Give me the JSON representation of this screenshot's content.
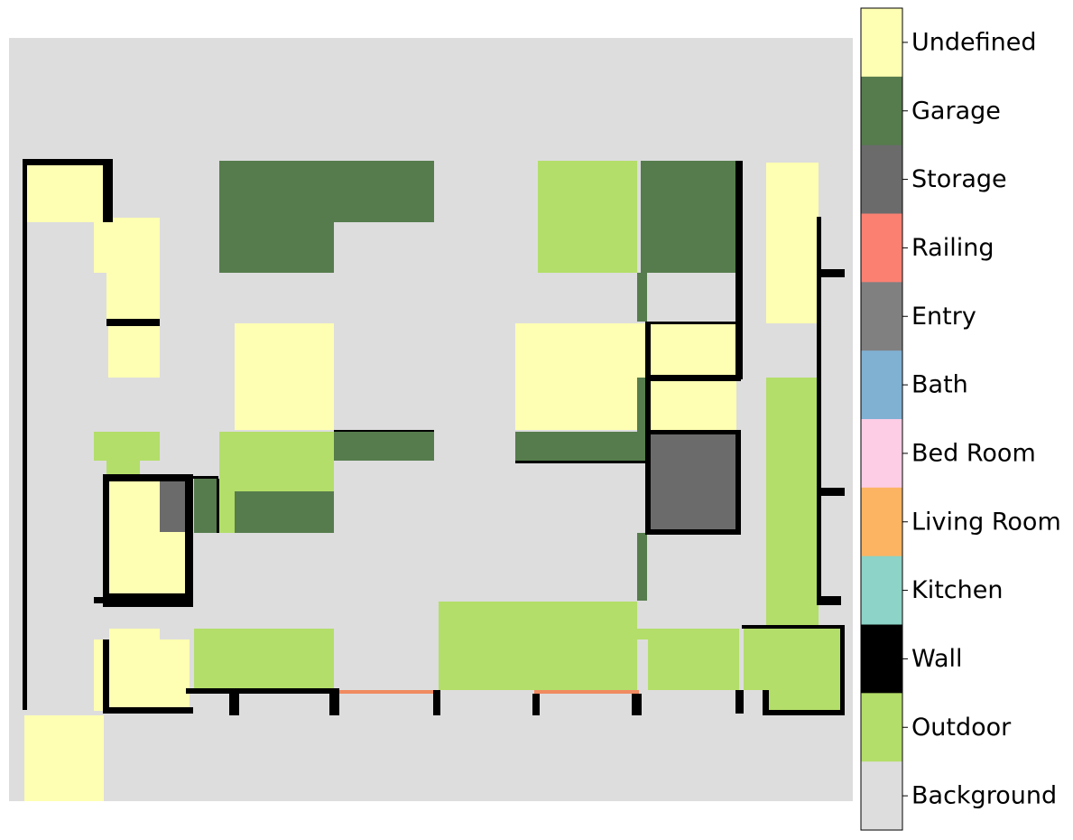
{
  "legend": {
    "classes": [
      {
        "label": "Undefined",
        "color": "#ffffb3"
      },
      {
        "label": "Garage",
        "color": "#567c4d"
      },
      {
        "label": "Storage",
        "color": "#6b6b6b"
      },
      {
        "label": "Railing",
        "color": "#fb8072"
      },
      {
        "label": "Entry",
        "color": "#808080"
      },
      {
        "label": "Bath",
        "color": "#80b1d3"
      },
      {
        "label": "Bed Room",
        "color": "#fccde5"
      },
      {
        "label": "Living Room",
        "color": "#fdb462"
      },
      {
        "label": "Kitchen",
        "color": "#8dd3c7"
      },
      {
        "label": "Wall",
        "color": "#000000"
      },
      {
        "label": "Outdoor",
        "color": "#b3de69"
      },
      {
        "label": "Background",
        "color": "#dddddd"
      }
    ]
  },
  "colors": {
    "background": "#dddddd",
    "wall": "#000000",
    "undefined": "#ffffb3",
    "garage": "#567c4d",
    "storage": "#6b6b6b",
    "outdoor": "#b3de69",
    "railing": "#fb8072"
  }
}
